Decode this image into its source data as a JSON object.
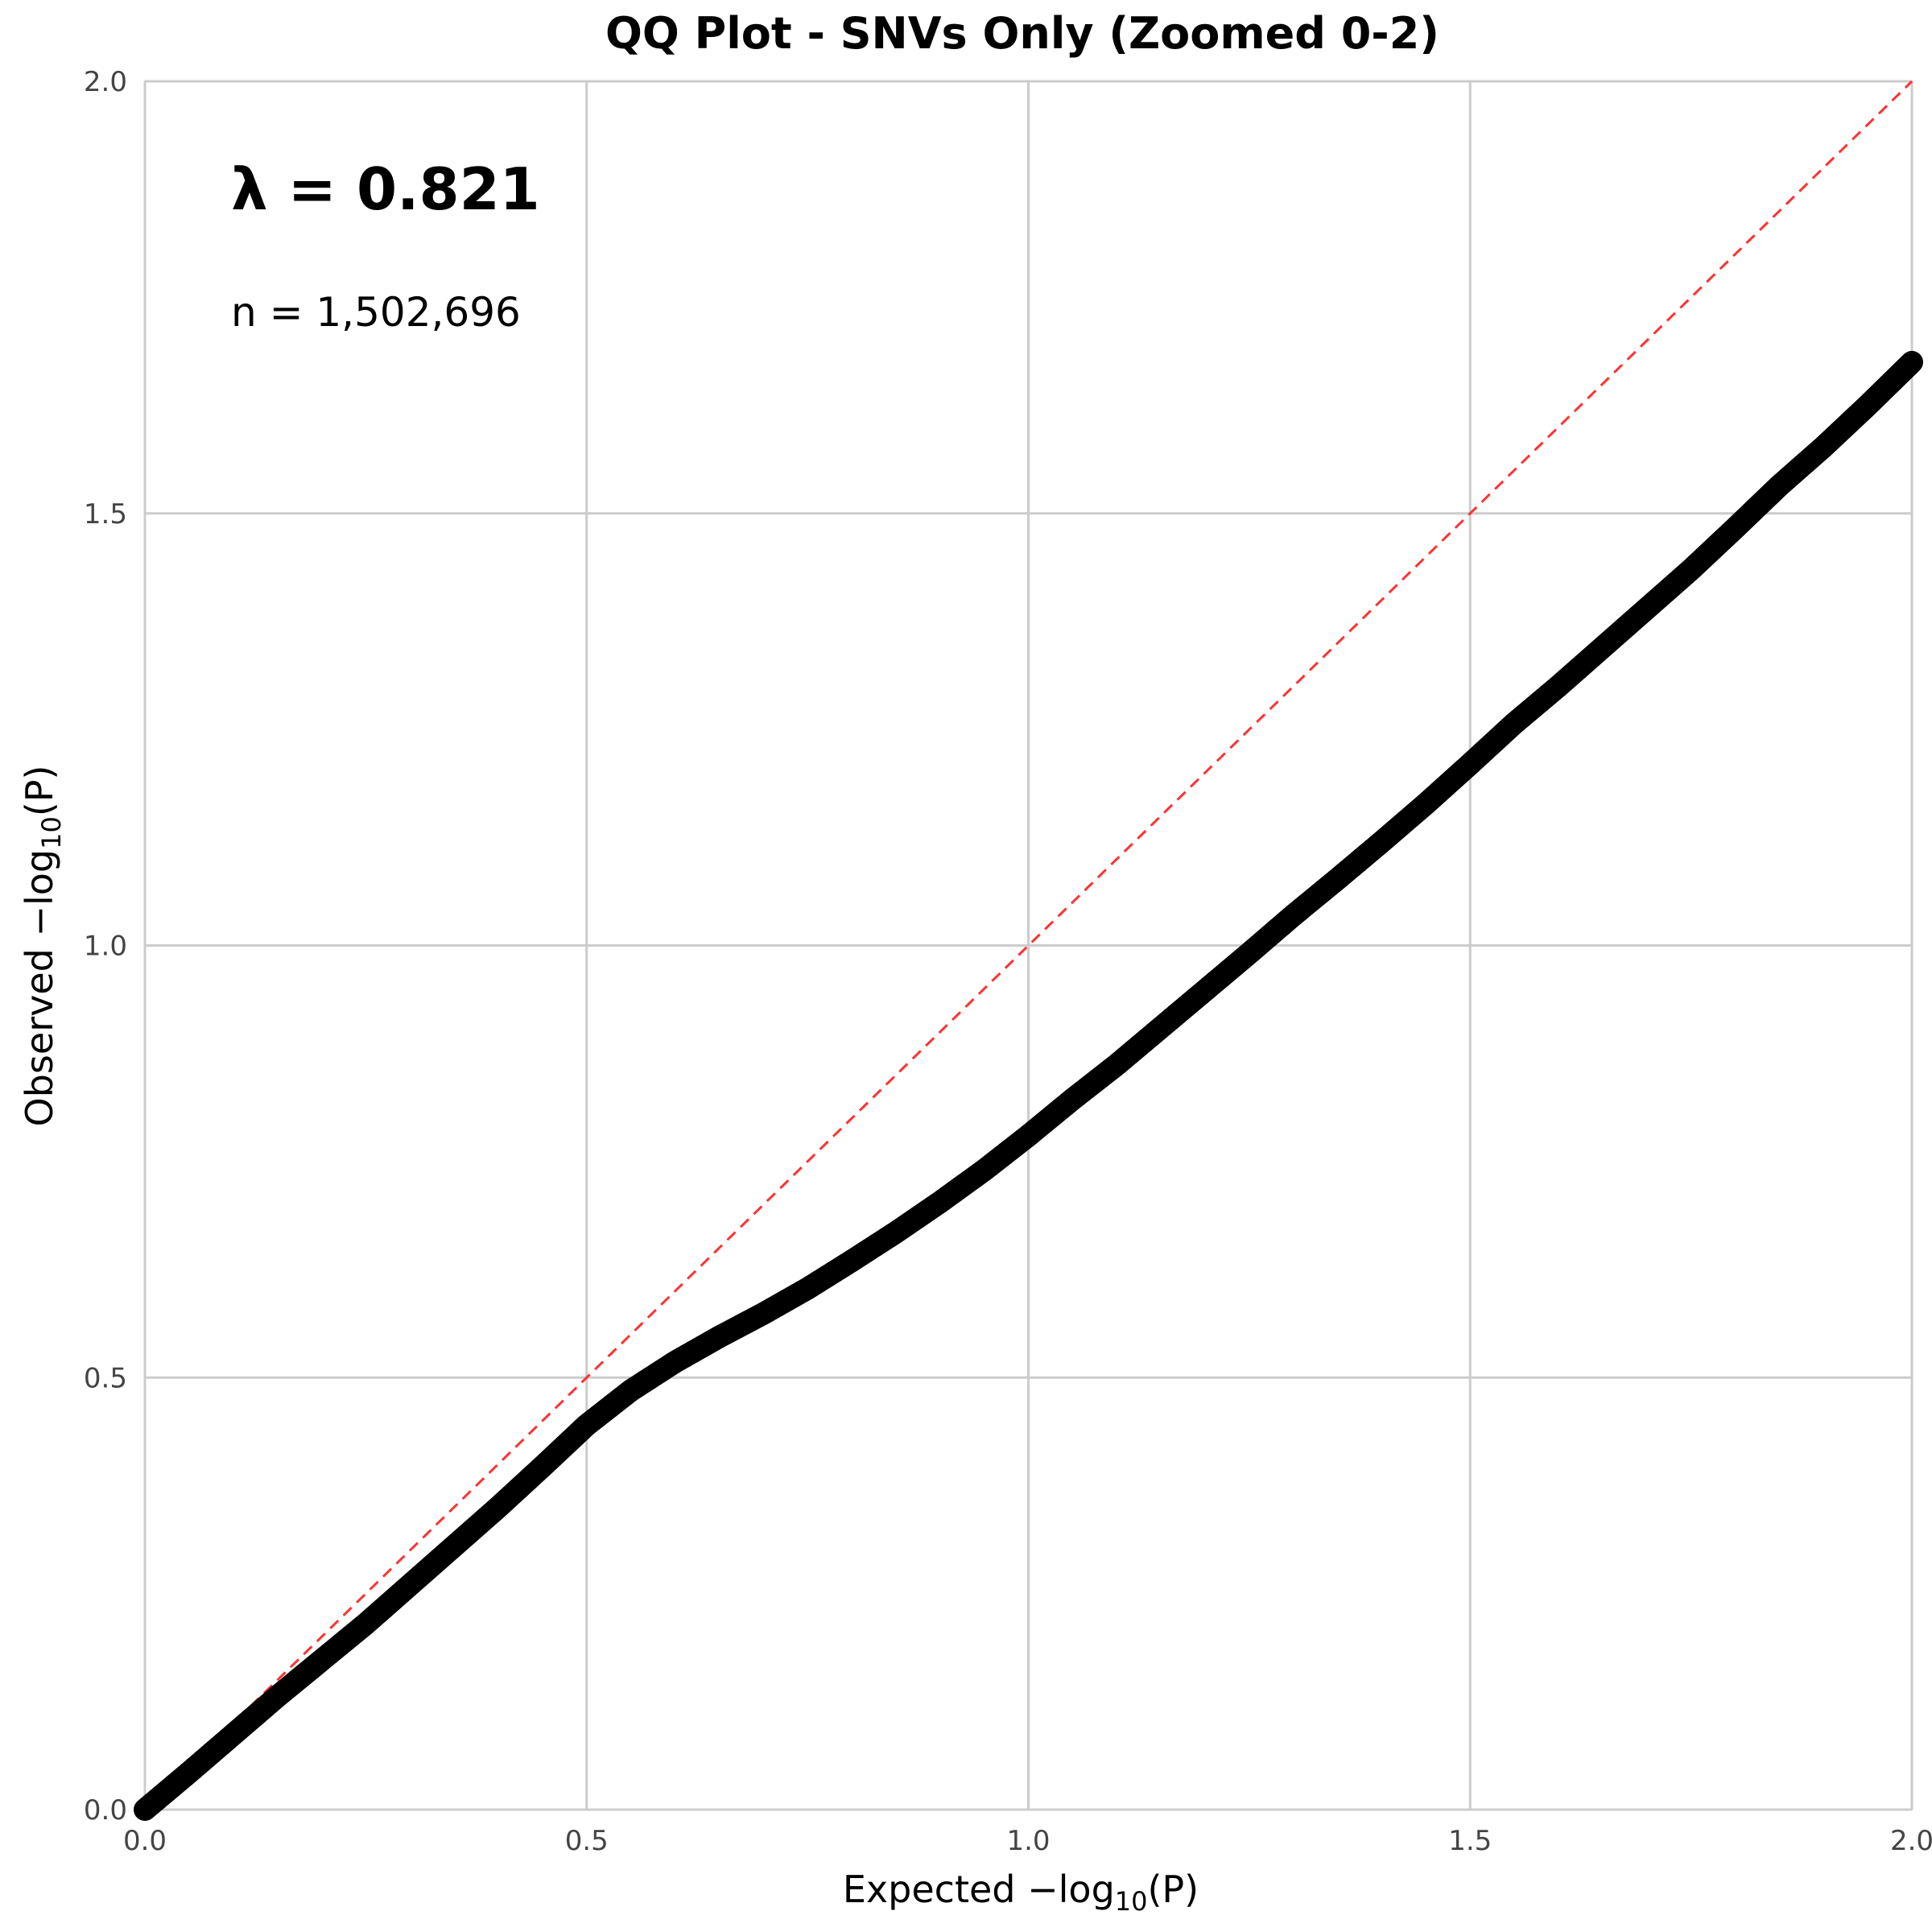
{
  "chart_data": {
    "type": "scatter",
    "title": "QQ Plot - SNVs Only (Zoomed 0-2)",
    "xlabel": {
      "prefix": "Expected −log",
      "sub": "10",
      "suffix": "(P)"
    },
    "ylabel": {
      "prefix": "Observed −log",
      "sub": "10",
      "suffix": "(P)"
    },
    "xlim": [
      0,
      2
    ],
    "ylim": [
      0,
      2
    ],
    "xticks": [
      0.0,
      0.5,
      1.0,
      1.5,
      2.0
    ],
    "yticks": [
      0.0,
      0.5,
      1.0,
      1.5,
      2.0
    ],
    "xtick_labels": [
      "0.0",
      "0.5",
      "1.0",
      "1.5",
      "2.0"
    ],
    "ytick_labels": [
      "0.0",
      "0.5",
      "1.0",
      "1.5",
      "2.0"
    ],
    "grid": true,
    "annotations": {
      "lambda": "λ = 0.821",
      "n": "n = 1,502,696"
    },
    "reference_line": {
      "x": [
        0,
        2
      ],
      "y": [
        0,
        2
      ],
      "color": "#ff3333",
      "style": "dashed"
    },
    "series": [
      {
        "color": "#000000",
        "x": [
          0.0,
          0.05,
          0.1,
          0.15,
          0.2,
          0.25,
          0.3,
          0.35,
          0.4,
          0.45,
          0.5,
          0.55,
          0.6,
          0.65,
          0.7,
          0.75,
          0.8,
          0.85,
          0.9,
          0.95,
          1.0,
          1.05,
          1.1,
          1.15,
          1.2,
          1.25,
          1.3,
          1.35,
          1.4,
          1.45,
          1.5,
          1.55,
          1.6,
          1.65,
          1.7,
          1.75,
          1.8,
          1.85,
          1.9,
          1.95,
          2.0
        ],
        "y": [
          0.0,
          0.043,
          0.087,
          0.131,
          0.173,
          0.215,
          0.26,
          0.305,
          0.35,
          0.397,
          0.445,
          0.485,
          0.518,
          0.547,
          0.574,
          0.603,
          0.635,
          0.668,
          0.703,
          0.74,
          0.78,
          0.822,
          0.862,
          0.905,
          0.948,
          0.991,
          1.035,
          1.077,
          1.12,
          1.164,
          1.21,
          1.257,
          1.3,
          1.345,
          1.39,
          1.435,
          1.483,
          1.532,
          1.577,
          1.625,
          1.675
        ]
      }
    ]
  }
}
